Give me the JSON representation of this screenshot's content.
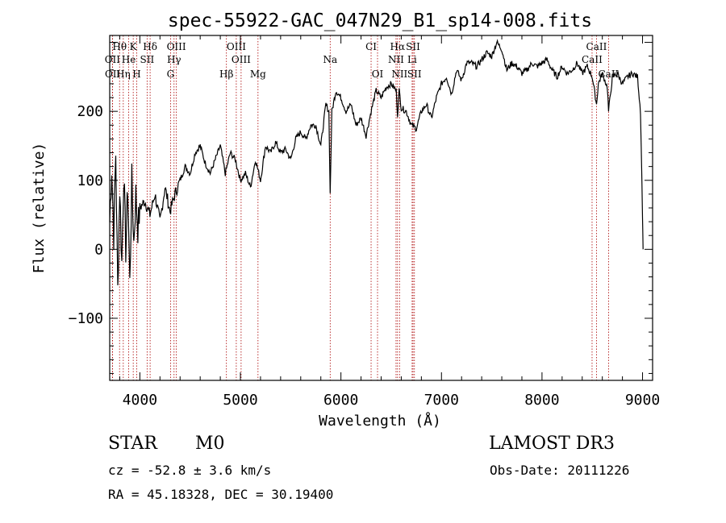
{
  "chart_data": {
    "type": "line",
    "title": "spec-55922-GAC_047N29_B1_sp14-008.fits",
    "xlabel": "Wavelength (Å)",
    "ylabel": "Flux (relative)",
    "xlim": [
      3700,
      9100
    ],
    "ylim": [
      -190,
      310
    ],
    "xticks": [
      4000,
      5000,
      6000,
      7000,
      8000,
      9000
    ],
    "yticks": [
      -100,
      0,
      100,
      200
    ],
    "series": [
      {
        "name": "spectrum",
        "x": [
          3700,
          3720,
          3740,
          3760,
          3780,
          3800,
          3820,
          3840,
          3860,
          3880,
          3900,
          3920,
          3940,
          3960,
          3980,
          4000,
          4050,
          4100,
          4150,
          4200,
          4250,
          4300,
          4350,
          4400,
          4450,
          4500,
          4550,
          4600,
          4650,
          4700,
          4750,
          4800,
          4850,
          4900,
          4950,
          5000,
          5050,
          5100,
          5150,
          5200,
          5250,
          5300,
          5350,
          5400,
          5450,
          5500,
          5550,
          5600,
          5650,
          5700,
          5750,
          5800,
          5850,
          5880,
          5893,
          5910,
          5950,
          6000,
          6050,
          6100,
          6150,
          6200,
          6250,
          6300,
          6350,
          6400,
          6450,
          6500,
          6550,
          6563,
          6580,
          6600,
          6650,
          6700,
          6750,
          6800,
          6850,
          6900,
          6950,
          7000,
          7050,
          7100,
          7150,
          7200,
          7250,
          7300,
          7350,
          7400,
          7450,
          7500,
          7550,
          7600,
          7650,
          7700,
          7750,
          7800,
          7850,
          7900,
          7950,
          8000,
          8050,
          8100,
          8150,
          8200,
          8250,
          8300,
          8350,
          8400,
          8450,
          8500,
          8542,
          8560,
          8600,
          8650,
          8662,
          8700,
          8750,
          8800,
          8850,
          8900,
          8950,
          8980,
          9000,
          9005
        ],
        "values": [
          40,
          120,
          20,
          140,
          -60,
          90,
          -20,
          110,
          0,
          90,
          -50,
          100,
          10,
          80,
          30,
          60,
          70,
          50,
          80,
          40,
          90,
          55,
          80,
          100,
          120,
          110,
          140,
          150,
          125,
          110,
          130,
          150,
          110,
          140,
          130,
          100,
          110,
          90,
          130,
          100,
          150,
          140,
          155,
          140,
          145,
          130,
          160,
          170,
          160,
          180,
          180,
          150,
          210,
          200,
          80,
          200,
          230,
          220,
          200,
          210,
          180,
          190,
          165,
          200,
          230,
          220,
          235,
          240,
          230,
          195,
          230,
          205,
          200,
          180,
          175,
          200,
          210,
          190,
          220,
          240,
          250,
          225,
          260,
          245,
          270,
          270,
          265,
          275,
          285,
          280,
          300,
          290,
          260,
          270,
          265,
          255,
          260,
          270,
          265,
          270,
          275,
          260,
          250,
          265,
          255,
          260,
          270,
          255,
          265,
          250,
          210,
          240,
          255,
          235,
          200,
          250,
          255,
          240,
          250,
          255,
          250,
          200,
          50,
          0
        ]
      }
    ],
    "emission_lines": [
      {
        "label": "Hθ",
        "x": 3798,
        "row": 1
      },
      {
        "label": "K",
        "x": 3934,
        "row": 1
      },
      {
        "label": "Hδ",
        "x": 4102,
        "row": 1
      },
      {
        "label": "OIII",
        "x": 4363,
        "row": 1
      },
      {
        "label": "OIII",
        "x": 4959,
        "row": 1
      },
      {
        "label": "CI",
        "x": 6300,
        "row": 1
      },
      {
        "label": "Hα",
        "x": 6563,
        "row": 1
      },
      {
        "label": "SII",
        "x": 6717,
        "row": 1
      },
      {
        "label": "CaII",
        "x": 8542,
        "row": 1
      },
      {
        "label": "OII",
        "x": 3727,
        "row": 2
      },
      {
        "label": "He",
        "x": 3889,
        "row": 2
      },
      {
        "label": "SII",
        "x": 4072,
        "row": 2
      },
      {
        "label": "Hγ",
        "x": 4340,
        "row": 2
      },
      {
        "label": "OIII",
        "x": 5007,
        "row": 2
      },
      {
        "label": "Na",
        "x": 5893,
        "row": 2
      },
      {
        "label": "NII",
        "x": 6548,
        "row": 2
      },
      {
        "label": "Li",
        "x": 6708,
        "row": 2
      },
      {
        "label": "CaII",
        "x": 8498,
        "row": 2
      },
      {
        "label": "OII",
        "x": 3729,
        "row": 3
      },
      {
        "label": "Hη",
        "x": 3835,
        "row": 3
      },
      {
        "label": "H",
        "x": 3969,
        "row": 3
      },
      {
        "label": "G",
        "x": 4305,
        "row": 3
      },
      {
        "label": "Hβ",
        "x": 4861,
        "row": 3
      },
      {
        "label": "Mg",
        "x": 5175,
        "row": 3
      },
      {
        "label": "OI",
        "x": 6364,
        "row": 3
      },
      {
        "label": "NII",
        "x": 6583,
        "row": 3
      },
      {
        "label": "SII",
        "x": 6731,
        "row": 3
      },
      {
        "label": "CaII",
        "x": 8662,
        "row": 3
      }
    ]
  },
  "info": {
    "class": "STAR",
    "subclass": "M0",
    "survey": "LAMOST DR3",
    "cz": "cz = -52.8 ± 3.6 km/s",
    "obs_date": "Obs-Date: 20111226",
    "coords": "RA =  45.18328, DEC =  30.19400"
  },
  "colors": {
    "line_marker": "#aa0000",
    "spectrum": "#000000"
  }
}
